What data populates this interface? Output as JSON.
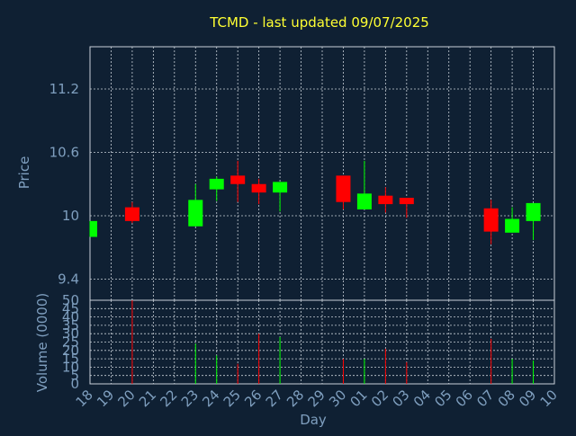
{
  "chart_data": {
    "type": "candlestick",
    "title": "TCMD - last updated 09/07/2025",
    "xlabel": "Day",
    "price_ylabel": "Price",
    "volume_ylabel": "Volume (0000)",
    "price_ylim": [
      9.2,
      11.6
    ],
    "price_yticks": [
      "11.2",
      "10.6",
      "10",
      "9.4"
    ],
    "price_ytick_values": [
      11.2,
      10.6,
      10.0,
      9.4
    ],
    "volume_ylim": [
      0,
      50
    ],
    "volume_yticks": [
      "50",
      "45",
      "40",
      "35",
      "30",
      "25",
      "20",
      "15",
      "10",
      "5",
      "0"
    ],
    "volume_ytick_values": [
      50,
      45,
      40,
      35,
      30,
      25,
      20,
      15,
      10,
      5,
      0
    ],
    "x_ticks": [
      "18",
      "19",
      "20",
      "21",
      "22",
      "23",
      "24",
      "25",
      "26",
      "27",
      "28",
      "29",
      "30",
      "01",
      "02",
      "03",
      "04",
      "05",
      "06",
      "07",
      "08",
      "09",
      "10"
    ],
    "colors": {
      "up": "#00ff00",
      "down": "#ff0000",
      "title": "#ffff33",
      "axis": "#7f9fbf"
    },
    "candles": [
      {
        "day": "18",
        "open": 9.8,
        "close": 9.95,
        "high": 9.95,
        "low": 9.8,
        "volume": 0
      },
      {
        "day": "20",
        "open": 10.08,
        "close": 9.95,
        "high": 10.13,
        "low": 9.93,
        "volume": 50
      },
      {
        "day": "23",
        "open": 9.9,
        "close": 10.15,
        "high": 10.3,
        "low": 9.9,
        "volume": 24
      },
      {
        "day": "24",
        "open": 10.25,
        "close": 10.35,
        "high": 10.37,
        "low": 10.14,
        "volume": 17
      },
      {
        "day": "25",
        "open": 10.38,
        "close": 10.3,
        "high": 10.52,
        "low": 10.13,
        "volume": 12
      },
      {
        "day": "26",
        "open": 10.3,
        "close": 10.22,
        "high": 10.35,
        "low": 10.11,
        "volume": 30
      },
      {
        "day": "27",
        "open": 10.22,
        "close": 10.32,
        "high": 10.32,
        "low": 10.04,
        "volume": 28
      },
      {
        "day": "30",
        "open": 10.38,
        "close": 10.13,
        "high": 10.38,
        "low": 10.06,
        "volume": 15
      },
      {
        "day": "01",
        "open": 10.06,
        "close": 10.21,
        "high": 10.52,
        "low": 10.06,
        "volume": 15
      },
      {
        "day": "02",
        "open": 10.19,
        "close": 10.11,
        "high": 10.27,
        "low": 10.03,
        "volume": 21
      },
      {
        "day": "03",
        "open": 10.17,
        "close": 10.11,
        "high": 10.17,
        "low": 9.98,
        "volume": 13
      },
      {
        "day": "07",
        "open": 10.07,
        "close": 9.85,
        "high": 10.15,
        "low": 9.73,
        "volume": 27
      },
      {
        "day": "08",
        "open": 9.84,
        "close": 9.97,
        "high": 10.08,
        "low": 9.84,
        "volume": 15
      },
      {
        "day": "09",
        "open": 9.95,
        "close": 10.12,
        "high": 10.12,
        "low": 9.77,
        "volume": 14
      }
    ]
  }
}
